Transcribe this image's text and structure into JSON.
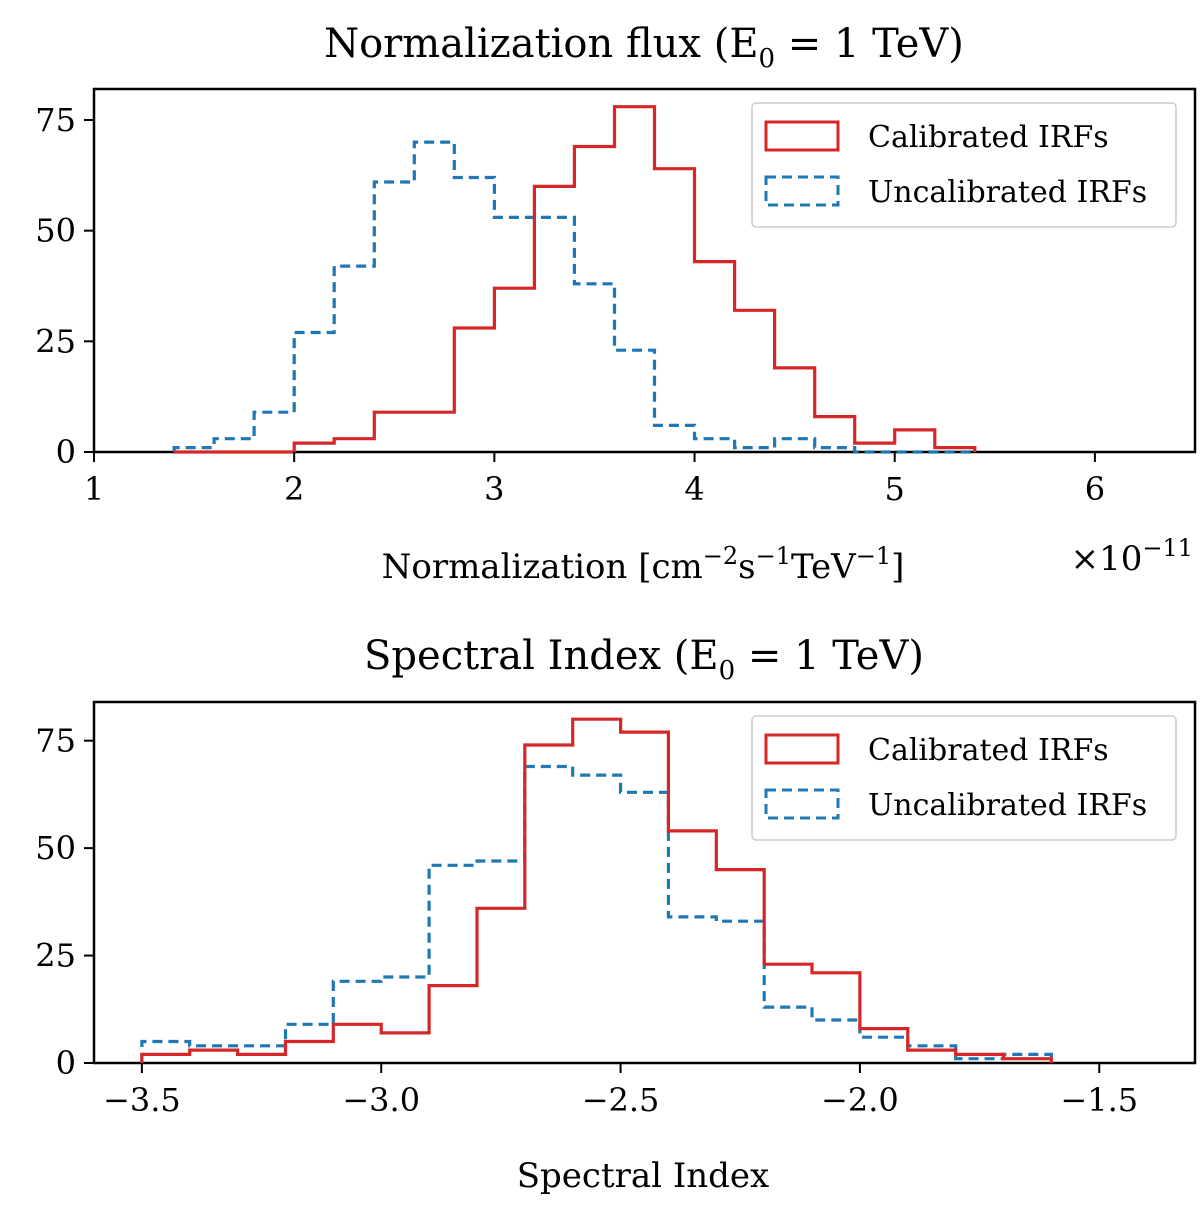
{
  "chart_data": [
    {
      "type": "histogram",
      "title": "Normalization flux (E₀ = 1 TeV)",
      "title_main": "Normalization flux (E",
      "title_sub": "0",
      "title_tail": " = 1 TeV)",
      "xlabel": "Normalization [cm⁻²s⁻¹TeV⁻¹]",
      "xlabel_main": "Normalization [cm",
      "xlabel_sup1": "−2",
      "xlabel_mid1": "s",
      "xlabel_sup2": "−1",
      "xlabel_mid2": "TeV",
      "xlabel_sup3": "−1",
      "xlabel_tail": "]",
      "offset_text": "×10⁻¹¹",
      "offset_base": "×10",
      "offset_exp": "−11",
      "ylabel": "",
      "xlim": [
        1.0,
        6.5
      ],
      "ylim": [
        0,
        82
      ],
      "xticks": [
        1,
        2,
        3,
        4,
        5,
        6
      ],
      "xtick_labels": [
        "1",
        "2",
        "3",
        "4",
        "5",
        "6"
      ],
      "yticks": [
        0,
        25,
        50,
        75
      ],
      "ytick_labels": [
        "0",
        "25",
        "50",
        "75"
      ],
      "legend_position": "top-right",
      "bin_edges": [
        1.4,
        1.6,
        1.8,
        2.0,
        2.2,
        2.4,
        2.6,
        2.8,
        3.0,
        3.2,
        3.4,
        3.6,
        3.8,
        4.0,
        4.2,
        4.4,
        4.6,
        4.8,
        5.0,
        5.2,
        5.4
      ],
      "series": [
        {
          "name": "Calibrated IRFs",
          "style": "solid",
          "color": "#d62728",
          "counts": [
            0,
            0,
            0,
            2,
            3,
            9,
            9,
            28,
            37,
            60,
            69,
            78,
            64,
            43,
            32,
            19,
            8,
            2,
            5,
            1
          ]
        },
        {
          "name": "Uncalibrated IRFs",
          "style": "dashed",
          "color": "#1f77b4",
          "counts": [
            1,
            3,
            9,
            27,
            42,
            61,
            70,
            62,
            53,
            53,
            38,
            23,
            6,
            3,
            1,
            3,
            1,
            0,
            0,
            0
          ]
        }
      ]
    },
    {
      "type": "histogram",
      "title": "Spectral Index (E₀ = 1 TeV)",
      "title_main": "Spectral Index (E",
      "title_sub": "0",
      "title_tail": " = 1 TeV)",
      "xlabel": "Spectral Index",
      "ylabel": "",
      "xlim": [
        -3.6,
        -1.3
      ],
      "ylim": [
        0,
        84
      ],
      "xticks": [
        -3.5,
        -3.0,
        -2.5,
        -2.0,
        -1.5
      ],
      "xtick_labels": [
        "−3.5",
        "−3.0",
        "−2.5",
        "−2.0",
        "−1.5"
      ],
      "yticks": [
        0,
        25,
        50,
        75
      ],
      "ytick_labels": [
        "0",
        "25",
        "50",
        "75"
      ],
      "legend_position": "top-right",
      "bin_edges": [
        -3.5,
        -3.4,
        -3.3,
        -3.2,
        -3.1,
        -3.0,
        -2.9,
        -2.8,
        -2.7,
        -2.6,
        -2.5,
        -2.4,
        -2.3,
        -2.2,
        -2.1,
        -2.0,
        -1.9,
        -1.8,
        -1.7,
        -1.6
      ],
      "series": [
        {
          "name": "Calibrated IRFs",
          "style": "solid",
          "color": "#d62728",
          "counts": [
            2,
            3,
            2,
            5,
            9,
            7,
            18,
            36,
            74,
            80,
            77,
            54,
            45,
            23,
            21,
            8,
            3,
            2,
            1
          ]
        },
        {
          "name": "Uncalibrated IRFs",
          "style": "dashed",
          "color": "#1f77b4",
          "counts": [
            5,
            4,
            4,
            9,
            19,
            20,
            46,
            47,
            69,
            67,
            63,
            34,
            33,
            13,
            10,
            6,
            4,
            1,
            2
          ]
        }
      ]
    }
  ]
}
